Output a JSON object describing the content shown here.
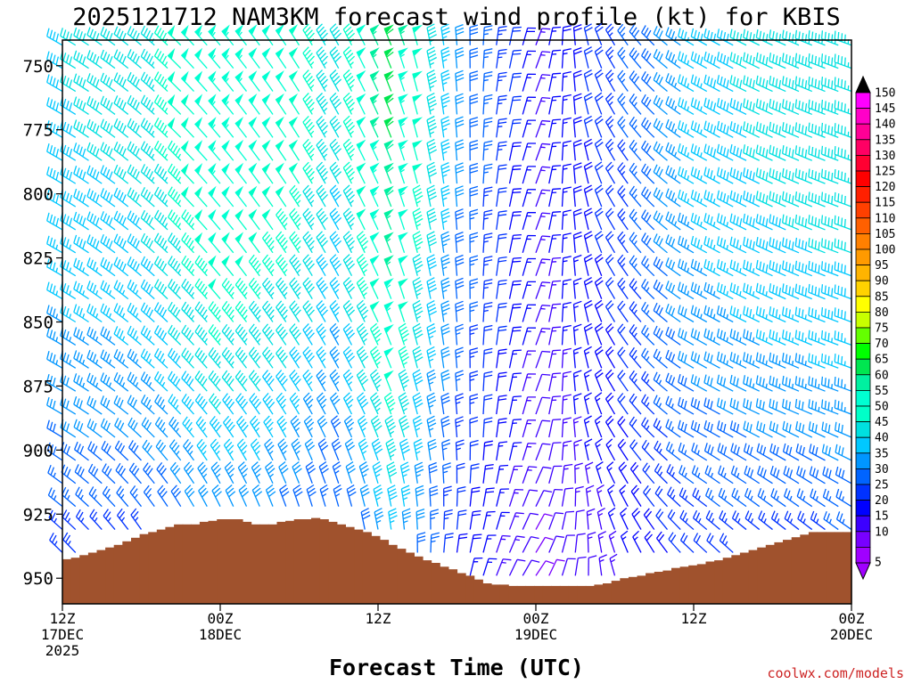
{
  "chart_data": {
    "type": "wind-barb-time-height",
    "title": "2025121712 NAM3KM forecast wind profile (kt) for KBIS",
    "xlabel": "Forecast Time (UTC)",
    "y_axis": {
      "ticks": [
        750,
        775,
        800,
        825,
        850,
        875,
        900,
        925,
        950
      ],
      "range_hpa": [
        740,
        960
      ],
      "inverted": true
    },
    "x_axis": {
      "range_hours": [
        0,
        60
      ],
      "ticks": [
        {
          "hour": 0,
          "lines": [
            "12Z",
            "17DEC",
            "2025"
          ]
        },
        {
          "hour": 12,
          "lines": [
            "00Z",
            "18DEC"
          ]
        },
        {
          "hour": 24,
          "lines": [
            "12Z"
          ]
        },
        {
          "hour": 36,
          "lines": [
            "00Z",
            "19DEC"
          ]
        },
        {
          "hour": 48,
          "lines": [
            "12Z"
          ]
        },
        {
          "hour": 60,
          "lines": [
            "00Z",
            "20DEC"
          ]
        }
      ]
    },
    "colorbar": {
      "labels": [
        150,
        145,
        140,
        135,
        130,
        125,
        120,
        115,
        110,
        105,
        100,
        95,
        90,
        85,
        80,
        75,
        70,
        65,
        60,
        55,
        50,
        45,
        40,
        35,
        30,
        25,
        20,
        15,
        10,
        5
      ],
      "colors": [
        "#ff00ff",
        "#ff00c8",
        "#ff0096",
        "#ff0064",
        "#ff0032",
        "#ff0000",
        "#ff2000",
        "#ff4000",
        "#ff6000",
        "#ff8000",
        "#ff9a00",
        "#ffb400",
        "#ffd200",
        "#ffff00",
        "#c8ff00",
        "#64ff00",
        "#00ff00",
        "#00e650",
        "#00f0a0",
        "#00ffd2",
        "#00ffc8",
        "#00e0e0",
        "#00c8ff",
        "#0096ff",
        "#0064ff",
        "#0032ff",
        "#0000ff",
        "#3c00ff",
        "#7800ff",
        "#a000ff"
      ],
      "top_arrow_color": "#000000",
      "bottom_arrow_color": "#a000ff"
    },
    "terrain": {
      "color": "#a0522d",
      "surface_pressure_hpa": [
        942.6,
        942.0,
        941.0,
        940.0,
        939.0,
        938.0,
        937.0,
        935.6,
        934.2,
        932.8,
        932.0,
        931.0,
        930.0,
        929.0,
        929.0,
        929.0,
        928.0,
        927.6,
        927.0,
        927.0,
        927.0,
        928.0,
        929.0,
        929.0,
        929.0,
        928.0,
        927.6,
        927.0,
        927.0,
        926.5,
        927.0,
        928.0,
        929.0,
        930.0,
        931.0,
        932.0,
        933.5,
        935.0,
        937.0,
        938.5,
        940.0,
        941.5,
        943.0,
        944.0,
        945.5,
        946.5,
        948.0,
        949.0,
        950.5,
        952.0,
        952.5,
        952.5,
        953.0,
        953.0,
        953.0,
        953.0,
        953.0,
        953.0,
        953.0,
        953.0,
        953.0,
        953.0,
        952.5,
        952.0,
        951.0,
        950.0,
        949.5,
        949.0,
        948.0,
        947.5,
        947.0,
        946.0,
        945.5,
        945.0,
        944.5,
        943.5,
        943.0,
        942.0,
        941.0,
        940.0,
        939.0,
        938.0,
        937.0,
        936.0,
        935.0,
        934.0,
        933.0,
        932.0,
        932.0,
        932.0,
        932.0,
        932.0,
        932.0
      ]
    },
    "wind_speed_stops_kt": [
      {
        "hour": 0,
        "speed": 38
      },
      {
        "hour": 6,
        "speed": 40
      },
      {
        "hour": 12,
        "speed": 52
      },
      {
        "hour": 18,
        "speed": 47
      },
      {
        "hour": 21,
        "speed": 40
      },
      {
        "hour": 25,
        "speed": 58
      },
      {
        "hour": 30,
        "speed": 30
      },
      {
        "hour": 36,
        "speed": 14
      },
      {
        "hour": 42,
        "speed": 22
      },
      {
        "hour": 48,
        "speed": 35
      },
      {
        "hour": 54,
        "speed": 40
      },
      {
        "hour": 60,
        "speed": 42
      }
    ],
    "wind_direction_stops_deg": [
      {
        "hour": 0,
        "dir": 300
      },
      {
        "hour": 12,
        "dir": 320
      },
      {
        "hour": 24,
        "dir": 335
      },
      {
        "hour": 30,
        "dir": 355
      },
      {
        "hour": 36,
        "dir": 20
      },
      {
        "hour": 42,
        "dir": 330
      },
      {
        "hour": 48,
        "dir": 300
      },
      {
        "hour": 60,
        "dir": 290
      }
    ],
    "credit": "coolwx.com/models"
  }
}
